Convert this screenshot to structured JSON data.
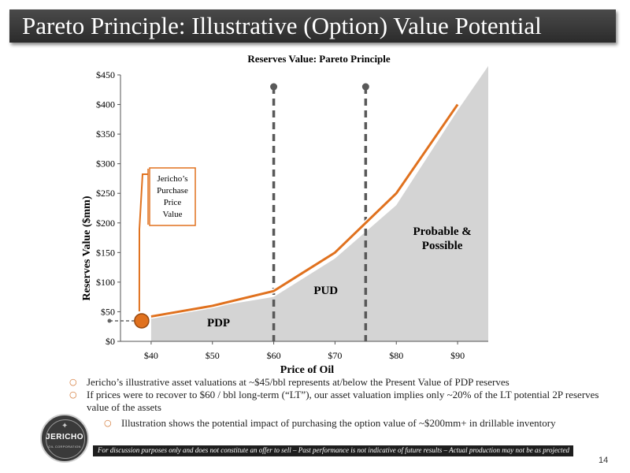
{
  "slide": {
    "title": "Pareto Principle: Illustrative (Option) Value Potential",
    "page_number": "14",
    "footer": "For discussion purposes only and does not constitute an offer to sell – Past performance is not indicative of future results – Actual production may not be as projected",
    "logo_text": "JERICHO",
    "logo_subtext": "OIL CORPORATION"
  },
  "bullets": [
    {
      "text": "Jericho’s illustrative asset valuations at ~$45/bbl represents at/below the Present Value of PDP reserves",
      "level": 1
    },
    {
      "text": "If prices were to recover to $60 / bbl long-term (“LT”), our asset valuation implies only ~20% of the LT potential 2P reserves value of the assets",
      "level": 1
    },
    {
      "text": "Illustration shows the potential impact of purchasing the option value of ~$200mm+ in drillable inventory",
      "level": 2
    }
  ],
  "chart_data": {
    "type": "line",
    "title": "Reserves Value: Pareto Principle",
    "xlabel": "Price of Oil",
    "ylabel": "Reserves Value ($mm)",
    "x_ticks": [
      "$40",
      "$50",
      "$60",
      "$70",
      "$80",
      "$90"
    ],
    "y_ticks": [
      "$0",
      "$50",
      "$100",
      "$150",
      "$200",
      "$250",
      "$300",
      "$350",
      "$400",
      "$450"
    ],
    "xlim": [
      35,
      95
    ],
    "ylim": [
      0,
      450
    ],
    "series": [
      {
        "x": [
          40,
          50,
          60,
          70,
          80,
          90
        ],
        "y": [
          42,
          60,
          85,
          150,
          250,
          400
        ],
        "color": "#e0711e"
      }
    ],
    "area": {
      "x": [
        40,
        50,
        60,
        70,
        80,
        90,
        95
      ],
      "y": [
        42,
        58,
        75,
        140,
        230,
        390,
        465
      ],
      "color": "#d4d4d4"
    },
    "dividers": [
      {
        "x": 60,
        "top": 430
      },
      {
        "x": 75,
        "top": 430
      }
    ],
    "region_labels": [
      {
        "text": "PDP",
        "x": 51,
        "y": 25
      },
      {
        "text": "PUD",
        "x": 68.5,
        "y": 80
      },
      {
        "text": "Probable & Possible",
        "x": 87.5,
        "y": 180
      }
    ],
    "marker": {
      "x": 40,
      "y": 40,
      "color": "#e0711e"
    },
    "callout": {
      "lines": [
        "Jericho’s",
        "Purchase",
        "Price",
        "Value"
      ]
    }
  }
}
